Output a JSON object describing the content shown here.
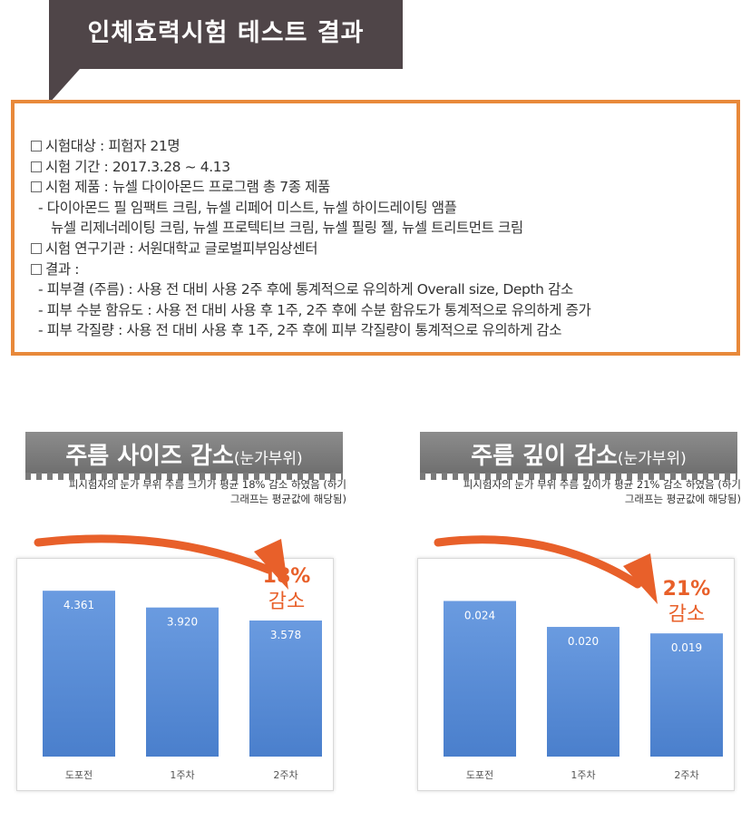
{
  "header": {
    "title": "인체효력시험  테스트 결과"
  },
  "info": {
    "lines": [
      {
        "box": true,
        "text": "시험대상 : 피험자 21명"
      },
      {
        "box": true,
        "text": "시험 기간 : 2017.3.28 ~ 4.13"
      },
      {
        "box": true,
        "text": "시험 제품 : 뉴셀 다이아몬드 프로그램 총 7종 제품"
      },
      {
        "box": false,
        "text": "- 다이아몬드 필 임팩트 크림, 뉴셀 리페어 미스트, 뉴셀 하이드레이팅 앰플"
      },
      {
        "box": false,
        "text": "뉴셀 리제너레이팅 크림, 뉴셀 프로텍티브 크림, 뉴셀 필링 젤, 뉴셀 트리트먼트 크림"
      },
      {
        "box": true,
        "text": "시험 연구기관 : 서원대학교 글로벌피부임상센터"
      },
      {
        "box": true,
        "text": "결과 :"
      },
      {
        "box": false,
        "text": "- 피부결 (주름) : 사용 전 대비 사용 2주 후에 통계적으로 유의하게 Overall size, Depth 감소"
      },
      {
        "box": false,
        "text": "- 피부 수분 함유도 : 사용 전 대비 사용 후 1주, 2주 후에 수분 함유도가 통계적으로 유의하게 증가"
      },
      {
        "box": false,
        "text": "- 피부 각질량 : 사용 전 대비 사용 후 1주, 2주 후에 피부 각질량이 통계적으로 유의하게 감소"
      }
    ]
  },
  "panels": [
    {
      "title_main": "주름 사이즈 감소",
      "title_sub": "(눈가부위)",
      "caption_1": "피시험자의 눈가 부위 주름 크기가 평균 18% 감소 하였음 (하기",
      "caption_2": "그래프는 평균값에 해당됨)",
      "annotation_pct": "18%",
      "annotation_word": "감소"
    },
    {
      "title_main": "주름 깊이 감소",
      "title_sub": "(눈가부위)",
      "caption_1": "피시험자의 눈가 부위 주름 깊이가 평균 21% 감소 하였음 (하기",
      "caption_2": "그래프는 평균값에 해당됨)",
      "annotation_pct": "21%",
      "annotation_word": "감소"
    }
  ],
  "chart_data": [
    {
      "type": "bar",
      "title": "",
      "categories": [
        "도포전",
        "1주차",
        "2주차"
      ],
      "values": [
        4.361,
        3.92,
        3.578
      ],
      "value_labels": [
        "4.361",
        "3.920",
        "3.578"
      ],
      "ylim": [
        0,
        5.2
      ],
      "grid": false,
      "bar_color": "#5b8ed6",
      "annotation": "18% 감소"
    },
    {
      "type": "bar",
      "title": "",
      "categories": [
        "도포전",
        "1주차",
        "2주차"
      ],
      "values": [
        0.024,
        0.02,
        0.019
      ],
      "value_labels": [
        "0.024",
        "0.020",
        "0.019"
      ],
      "ylim": [
        0,
        0.0305
      ],
      "grid": false,
      "bar_color": "#5b8ed6",
      "annotation": "21% 감소"
    }
  ],
  "colors": {
    "accent": "#e8602a",
    "box_border": "#e8893a",
    "header_bg": "#4f4548",
    "bar": "#5b8ed6"
  }
}
